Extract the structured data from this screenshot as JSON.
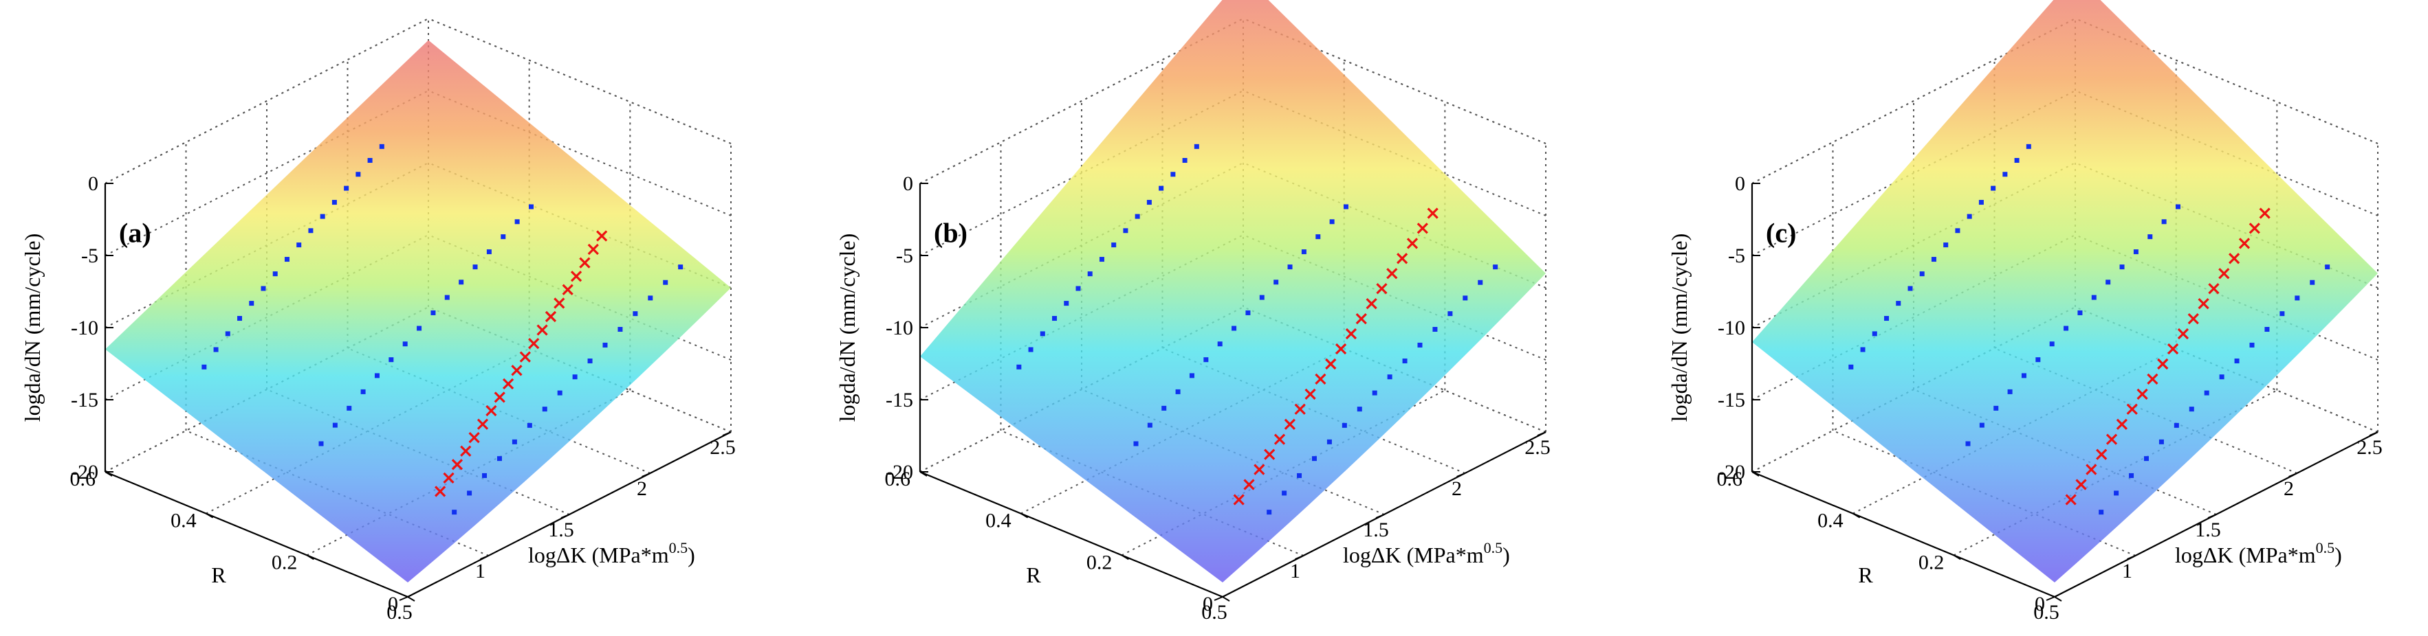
{
  "chart_data": [
    {
      "type": "surface3d",
      "panel_label": "(a)",
      "zlabel": "logda/dN (mm/cycle)",
      "ylabel": "R",
      "xlabel_main": "logΔK (MPa*m",
      "xlabel_sup": "0.5",
      "xlabel_close": ")",
      "xlim": [
        0.5,
        2.5
      ],
      "ylim": [
        0,
        0.6
      ],
      "zlim": [
        -20,
        0
      ],
      "x_ticks": [
        "0.5",
        "1",
        "1.5",
        "2",
        "2.5"
      ],
      "y_ticks": [
        "0",
        "0.2",
        "0.4",
        "0.6"
      ],
      "z_ticks": [
        "-20",
        "-15",
        "-10",
        "-5",
        "0"
      ],
      "surface_corners": {
        "low_x_low_R": -19,
        "low_x_high_R": -11.5,
        "high_x_low_R": -10,
        "high_x_high_R": -1.5
      },
      "blue_series": [
        {
          "R": 0.1,
          "x_start": 1.1,
          "x_end": 2.5,
          "z_start": -19,
          "z_end": -10
        },
        {
          "R": 0.3,
          "x_start": 0.9,
          "x_end": 2.2,
          "z_start": -16,
          "z_end": -7
        },
        {
          "R": 0.5,
          "x_start": 0.8,
          "x_end": 1.9,
          "z_start": -13,
          "z_end": -4
        }
      ],
      "red_series": [
        {
          "R": 0.1,
          "x_start": 1.2,
          "x_end": 2.2,
          "z_start": -19,
          "z_end": -7
        }
      ]
    },
    {
      "type": "surface3d",
      "panel_label": "(b)",
      "zlabel": "logda/dN (mm/cycle)",
      "ylabel": "R",
      "xlabel_main": "logΔK (MPa*m",
      "xlabel_sup": "0.5",
      "xlabel_close": ")",
      "xlim": [
        0.5,
        2.5
      ],
      "ylim": [
        0,
        0.6
      ],
      "zlim": [
        -20,
        0
      ],
      "x_ticks": [
        "0.5",
        "1",
        "1.5",
        "2",
        "2.5"
      ],
      "y_ticks": [
        "0",
        "0.2",
        "0.4",
        "0.6"
      ],
      "z_ticks": [
        "-20",
        "-15",
        "-10",
        "-5",
        "0"
      ],
      "surface_corners": {
        "low_x_low_R": -19,
        "low_x_high_R": -12,
        "high_x_low_R": -9,
        "high_x_high_R": 3
      },
      "blue_series": [
        {
          "R": 0.1,
          "x_start": 1.1,
          "x_end": 2.5,
          "z_start": -19,
          "z_end": -10
        },
        {
          "R": 0.3,
          "x_start": 0.9,
          "x_end": 2.2,
          "z_start": -16,
          "z_end": -7
        },
        {
          "R": 0.5,
          "x_start": 0.8,
          "x_end": 1.9,
          "z_start": -13,
          "z_end": -4
        }
      ],
      "red_series": [
        {
          "R": 0.1,
          "x_start": 1.1,
          "x_end": 2.3,
          "z_start": -19,
          "z_end": -6
        }
      ]
    },
    {
      "type": "surface3d",
      "panel_label": "(c)",
      "zlabel": "logda/dN (mm/cycle)",
      "ylabel": "R",
      "xlabel_main": "logΔK (MPa*m",
      "xlabel_sup": "0.5",
      "xlabel_close": ")",
      "xlim": [
        0.5,
        2.5
      ],
      "ylim": [
        0,
        0.6
      ],
      "zlim": [
        -20,
        0
      ],
      "x_ticks": [
        "0.5",
        "1",
        "1.5",
        "2",
        "2.5"
      ],
      "y_ticks": [
        "0",
        "0.2",
        "0.4",
        "0.6"
      ],
      "z_ticks": [
        "-20",
        "-15",
        "-10",
        "-5",
        "0"
      ],
      "surface_corners": {
        "low_x_low_R": -19,
        "low_x_high_R": -11,
        "high_x_low_R": -9,
        "high_x_high_R": 3
      },
      "blue_series": [
        {
          "R": 0.1,
          "x_start": 1.1,
          "x_end": 2.5,
          "z_start": -19,
          "z_end": -10
        },
        {
          "R": 0.3,
          "x_start": 0.9,
          "x_end": 2.2,
          "z_start": -16,
          "z_end": -7
        },
        {
          "R": 0.5,
          "x_start": 0.8,
          "x_end": 1.9,
          "z_start": -13,
          "z_end": -4
        }
      ],
      "red_series": [
        {
          "R": 0.1,
          "x_start": 1.1,
          "x_end": 2.3,
          "z_start": -19,
          "z_end": -6
        }
      ]
    }
  ]
}
